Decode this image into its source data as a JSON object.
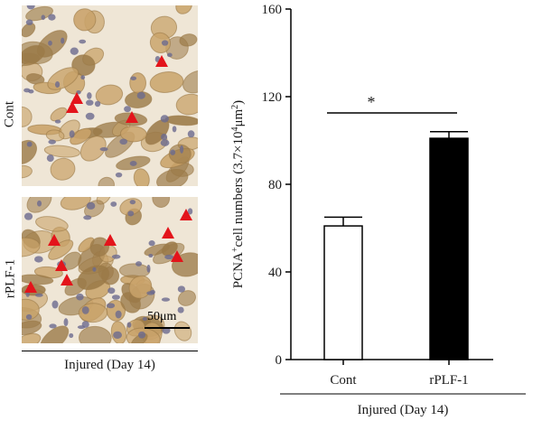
{
  "left_panel": {
    "row_labels": [
      "Cont",
      "rPLF-1"
    ],
    "scale_bar": "50μm",
    "caption": "Injured (Day 14)"
  },
  "colors": {
    "tissue_bg": "#efe6d6",
    "cell_tan": "#c9a36a",
    "cell_dark": "#9b7a48",
    "nucleus": "#6b6a8f",
    "arrow_red": "#e3141b",
    "bar_black": "#000000",
    "bar_white": "#ffffff"
  },
  "chart_data": {
    "type": "bar",
    "categories": [
      "Cont",
      "rPLF-1"
    ],
    "values": [
      61,
      101
    ],
    "errors": [
      4,
      3
    ],
    "bar_fill": [
      "#ffffff",
      "#000000"
    ],
    "ylabel_prefix": "PCNA",
    "ylabel_sup": "+",
    "ylabel_mid": "cell numbers (3.7×10",
    "ylabel_sup2": "4",
    "ylabel_unit": "μm",
    "ylabel_sup3": "2",
    "ylabel_end": ")",
    "ylim": [
      0,
      160
    ],
    "yticks": [
      0,
      40,
      80,
      120,
      160
    ],
    "significance": "*",
    "group_label": "Injured (Day 14)"
  }
}
